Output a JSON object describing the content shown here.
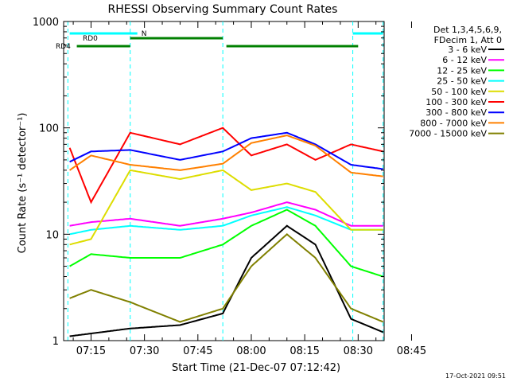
{
  "chart_data": {
    "type": "line",
    "title": "RHESSI Observing Summary Count Rates",
    "xlabel": "Start Time (21-Dec-07 07:12:42)",
    "ylabel": "Count Rate (s⁻¹ detector⁻¹)",
    "yscale": "log",
    "ylim": [
      1,
      1000
    ],
    "xlim_minutes": [
      7.3,
      97.3
    ],
    "x_tick_labels": [
      "07:15",
      "07:30",
      "07:45",
      "08:00",
      "08:15",
      "08:30",
      "08:45"
    ],
    "x_tick_minutes": [
      15,
      30,
      45,
      60,
      75,
      90,
      105
    ],
    "y_tick_labels": [
      "1",
      "10",
      "100",
      "1000"
    ],
    "y_tick_values": [
      1,
      10,
      100,
      1000
    ],
    "legend_title": [
      "Det 1,3,4,5,6,9,",
      "FDecim 1, Att 0"
    ],
    "legend_placement": "right",
    "timestamp": "17-Oct-2021 09:51",
    "flags": [
      {
        "name": "N",
        "color": "#00ffff",
        "segments": [
          [
            9.0,
            28.0
          ],
          [
            88.5,
            97.0
          ]
        ]
      },
      {
        "name": "RD0",
        "color": "#008000",
        "segments": [
          [
            26.0,
            52.0
          ]
        ]
      },
      {
        "name": "RD4",
        "color": "#008000",
        "segments": [
          [
            11.0,
            26.0
          ],
          [
            53.0,
            90.0
          ]
        ]
      }
    ],
    "boundaries": [
      8.5,
      26.0,
      52.0,
      88.5,
      97.0
    ],
    "series": [
      {
        "name": "3 - 6 keV",
        "color": "#000000",
        "values": [
          [
            9,
            1.1
          ],
          [
            26,
            1.3
          ],
          [
            40,
            1.4
          ],
          [
            52,
            1.8
          ],
          [
            60,
            6
          ],
          [
            70,
            12
          ],
          [
            78,
            8
          ],
          [
            88,
            1.6
          ],
          [
            97,
            1.2
          ]
        ]
      },
      {
        "name": "6 - 12 keV",
        "color": "#ff00ff",
        "values": [
          [
            9,
            12
          ],
          [
            15,
            13
          ],
          [
            26,
            14
          ],
          [
            40,
            12
          ],
          [
            52,
            14
          ],
          [
            60,
            16
          ],
          [
            70,
            20
          ],
          [
            78,
            17
          ],
          [
            88,
            12
          ],
          [
            97,
            12
          ]
        ]
      },
      {
        "name": "12 - 25 keV",
        "color": "#00ff00",
        "values": [
          [
            9,
            5
          ],
          [
            15,
            6.5
          ],
          [
            26,
            6
          ],
          [
            40,
            6
          ],
          [
            52,
            8
          ],
          [
            60,
            12
          ],
          [
            70,
            17
          ],
          [
            78,
            12
          ],
          [
            88,
            5
          ],
          [
            97,
            4
          ]
        ]
      },
      {
        "name": "25 - 50 keV",
        "color": "#00ffff",
        "values": [
          [
            9,
            10
          ],
          [
            15,
            11
          ],
          [
            26,
            12
          ],
          [
            40,
            11
          ],
          [
            52,
            12
          ],
          [
            60,
            15
          ],
          [
            70,
            18
          ],
          [
            78,
            15
          ],
          [
            88,
            11
          ],
          [
            97,
            11
          ]
        ]
      },
      {
        "name": "50 - 100 keV",
        "color": "#dddd00",
        "values": [
          [
            9,
            8
          ],
          [
            15,
            9
          ],
          [
            26,
            40
          ],
          [
            40,
            33
          ],
          [
            52,
            40
          ],
          [
            60,
            26
          ],
          [
            70,
            30
          ],
          [
            78,
            25
          ],
          [
            88,
            11
          ],
          [
            97,
            11
          ]
        ]
      },
      {
        "name": "100 - 300 keV",
        "color": "#ff0000",
        "values": [
          [
            9,
            65
          ],
          [
            15,
            20
          ],
          [
            26,
            90
          ],
          [
            40,
            70
          ],
          [
            52,
            100
          ],
          [
            60,
            55
          ],
          [
            70,
            70
          ],
          [
            78,
            50
          ],
          [
            88,
            70
          ],
          [
            97,
            60
          ]
        ]
      },
      {
        "name": "300 - 800 keV",
        "color": "#0000ff",
        "values": [
          [
            9,
            48
          ],
          [
            15,
            60
          ],
          [
            26,
            62
          ],
          [
            40,
            50
          ],
          [
            52,
            60
          ],
          [
            60,
            80
          ],
          [
            70,
            90
          ],
          [
            78,
            70
          ],
          [
            88,
            45
          ],
          [
            97,
            41
          ]
        ]
      },
      {
        "name": "800 - 7000 keV",
        "color": "#ff8000",
        "values": [
          [
            9,
            40
          ],
          [
            15,
            55
          ],
          [
            26,
            45
          ],
          [
            40,
            40
          ],
          [
            52,
            46
          ],
          [
            60,
            72
          ],
          [
            70,
            85
          ],
          [
            78,
            68
          ],
          [
            88,
            38
          ],
          [
            97,
            35
          ]
        ]
      },
      {
        "name": "7000 - 15000 keV",
        "color": "#808000",
        "values": [
          [
            9,
            2.5
          ],
          [
            15,
            3
          ],
          [
            26,
            2.3
          ],
          [
            40,
            1.5
          ],
          [
            52,
            2
          ],
          [
            60,
            5
          ],
          [
            70,
            10
          ],
          [
            78,
            6
          ],
          [
            88,
            2
          ],
          [
            97,
            1.5
          ]
        ]
      }
    ]
  }
}
